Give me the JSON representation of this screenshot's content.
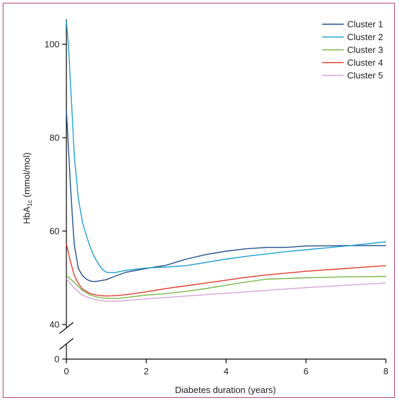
{
  "chart_data": {
    "type": "line",
    "title": "",
    "xlabel": "Diabetes duration (years)",
    "ylabel_main": "HbA",
    "ylabel_subscript": "1c",
    "ylabel_suffix": " (mmol/mol)",
    "xlim": [
      0,
      8
    ],
    "ylim_upper": [
      40,
      105
    ],
    "y_axis_break": {
      "lower_segment": [
        0,
        40
      ]
    },
    "x_ticks": [
      0,
      2,
      4,
      6,
      8
    ],
    "x_tick_labels": [
      "0",
      "2",
      "4",
      "6",
      "8"
    ],
    "y_ticks": [
      40,
      60,
      80,
      100
    ],
    "y_tick_labels": [
      "40",
      "60",
      "80",
      "100"
    ],
    "y_lower_tick": 0,
    "y_lower_tick_label": "0",
    "grid": false,
    "legend_position": "top-right",
    "series": [
      {
        "name": "Cluster 1",
        "color": "#1f4e8c",
        "points": [
          [
            0,
            86
          ],
          [
            0.05,
            78
          ],
          [
            0.1,
            70
          ],
          [
            0.15,
            63
          ],
          [
            0.2,
            57
          ],
          [
            0.3,
            52
          ],
          [
            0.4,
            50.5
          ],
          [
            0.5,
            49.7
          ],
          [
            0.6,
            49.3
          ],
          [
            0.7,
            49.2
          ],
          [
            0.8,
            49.3
          ],
          [
            1.0,
            49.6
          ],
          [
            1.2,
            50.3
          ],
          [
            1.5,
            51.2
          ],
          [
            2.0,
            52.0
          ],
          [
            2.5,
            52.7
          ],
          [
            3.0,
            54.0
          ],
          [
            3.5,
            55.0
          ],
          [
            4.0,
            55.7
          ],
          [
            4.5,
            56.2
          ],
          [
            5.0,
            56.5
          ],
          [
            5.5,
            56.5
          ],
          [
            6.0,
            56.8
          ],
          [
            7.0,
            56.9
          ],
          [
            8.0,
            56.9
          ]
        ]
      },
      {
        "name": "Cluster 2",
        "color": "#1c9fd0",
        "points": [
          [
            0,
            105
          ],
          [
            0.05,
            100
          ],
          [
            0.1,
            92
          ],
          [
            0.15,
            84
          ],
          [
            0.2,
            76
          ],
          [
            0.3,
            67
          ],
          [
            0.4,
            62
          ],
          [
            0.5,
            59
          ],
          [
            0.6,
            56.5
          ],
          [
            0.7,
            54.5
          ],
          [
            0.8,
            53
          ],
          [
            0.9,
            51.8
          ],
          [
            1.0,
            51.2
          ],
          [
            1.2,
            51.1
          ],
          [
            1.5,
            51.6
          ],
          [
            2.0,
            52.1
          ],
          [
            2.5,
            52.3
          ],
          [
            3.0,
            52.6
          ],
          [
            3.5,
            53.3
          ],
          [
            4.0,
            54.0
          ],
          [
            4.5,
            54.6
          ],
          [
            5.0,
            55.1
          ],
          [
            5.5,
            55.6
          ],
          [
            6.0,
            56.0
          ],
          [
            7.0,
            56.8
          ],
          [
            8.0,
            57.7
          ]
        ]
      },
      {
        "name": "Cluster 3",
        "color": "#7ab648",
        "points": [
          [
            0,
            50.5
          ],
          [
            0.2,
            49
          ],
          [
            0.4,
            47.3
          ],
          [
            0.6,
            46.3
          ],
          [
            0.8,
            45.8
          ],
          [
            1.0,
            45.6
          ],
          [
            1.3,
            45.6
          ],
          [
            1.6,
            45.9
          ],
          [
            2.0,
            46.3
          ],
          [
            2.5,
            46.6
          ],
          [
            3.0,
            47.1
          ],
          [
            3.5,
            47.7
          ],
          [
            4.0,
            48.4
          ],
          [
            4.5,
            49.1
          ],
          [
            5.0,
            49.7
          ],
          [
            6.0,
            50.0
          ],
          [
            7.0,
            50.2
          ],
          [
            8.0,
            50.3
          ]
        ]
      },
      {
        "name": "Cluster 4",
        "color": "#e03a2a",
        "points": [
          [
            0,
            57.3
          ],
          [
            0.1,
            53.5
          ],
          [
            0.2,
            50.5
          ],
          [
            0.3,
            48.8
          ],
          [
            0.4,
            47.6
          ],
          [
            0.6,
            46.6
          ],
          [
            0.8,
            46.2
          ],
          [
            1.0,
            46.1
          ],
          [
            1.3,
            46.2
          ],
          [
            1.6,
            46.5
          ],
          [
            2.0,
            47.0
          ],
          [
            2.5,
            47.7
          ],
          [
            3.0,
            48.3
          ],
          [
            3.5,
            48.9
          ],
          [
            4.0,
            49.5
          ],
          [
            4.5,
            50.1
          ],
          [
            5.0,
            50.6
          ],
          [
            6.0,
            51.4
          ],
          [
            7.0,
            52.0
          ],
          [
            8.0,
            52.6
          ]
        ]
      },
      {
        "name": "Cluster 5",
        "color": "#d4a3d6",
        "points": [
          [
            0,
            49.8
          ],
          [
            0.2,
            47.8
          ],
          [
            0.4,
            46.3
          ],
          [
            0.6,
            45.6
          ],
          [
            0.8,
            45.2
          ],
          [
            1.0,
            45.0
          ],
          [
            1.3,
            45.0
          ],
          [
            1.6,
            45.2
          ],
          [
            2.0,
            45.5
          ],
          [
            2.5,
            45.8
          ],
          [
            3.0,
            46.1
          ],
          [
            3.5,
            46.4
          ],
          [
            4.0,
            46.7
          ],
          [
            4.5,
            47.0
          ],
          [
            5.0,
            47.3
          ],
          [
            6.0,
            47.9
          ],
          [
            7.0,
            48.4
          ],
          [
            8.0,
            48.9
          ]
        ]
      }
    ]
  }
}
